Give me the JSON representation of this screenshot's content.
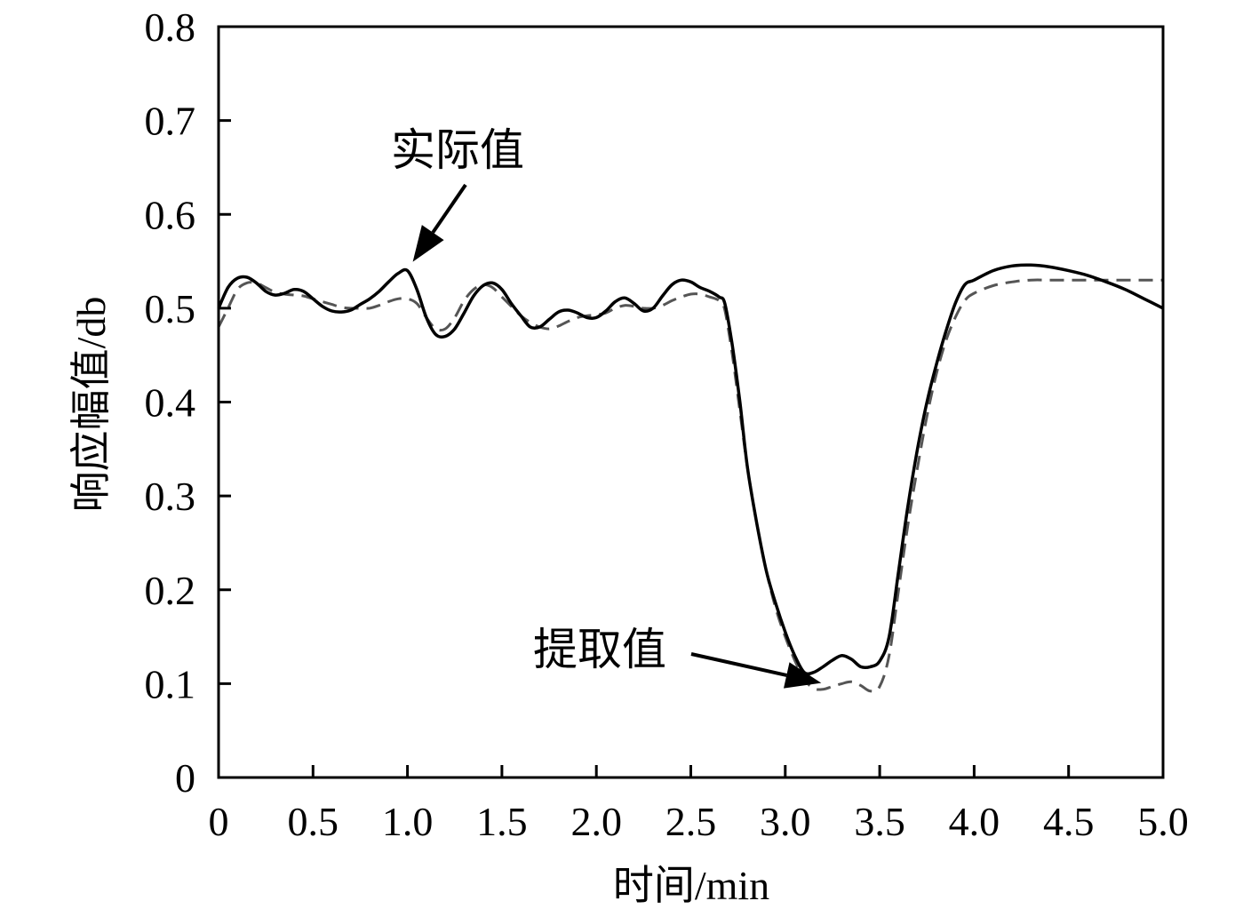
{
  "chart_data": {
    "type": "line",
    "xlabel": "时间/min",
    "ylabel": "响应幅值/db",
    "xlim": [
      0,
      5.0
    ],
    "ylim": [
      0,
      0.8
    ],
    "grid": false,
    "x_ticks": [
      "0",
      "0.5",
      "1.0",
      "1.5",
      "2.0",
      "2.5",
      "3.0",
      "3.5",
      "4.0",
      "4.5",
      "5.0"
    ],
    "y_ticks": [
      "0",
      "0.1",
      "0.2",
      "0.3",
      "0.4",
      "0.5",
      "0.6",
      "0.7",
      "0.8"
    ],
    "series": [
      {
        "name": "实际值",
        "style": "solid",
        "color": "#000000",
        "x": [
          0,
          0.05,
          0.1,
          0.15,
          0.2,
          0.25,
          0.3,
          0.35,
          0.4,
          0.45,
          0.5,
          0.55,
          0.6,
          0.65,
          0.7,
          0.75,
          0.8,
          0.85,
          0.9,
          0.95,
          1.0,
          1.05,
          1.1,
          1.15,
          1.2,
          1.25,
          1.3,
          1.35,
          1.4,
          1.45,
          1.5,
          1.55,
          1.6,
          1.65,
          1.7,
          1.75,
          1.8,
          1.85,
          1.9,
          1.95,
          2.0,
          2.05,
          2.1,
          2.15,
          2.2,
          2.25,
          2.3,
          2.35,
          2.4,
          2.45,
          2.5,
          2.55,
          2.6,
          2.65,
          2.68,
          2.72,
          2.76,
          2.8,
          2.85,
          2.9,
          2.95,
          3.0,
          3.05,
          3.1,
          3.15,
          3.2,
          3.25,
          3.3,
          3.35,
          3.4,
          3.45,
          3.5,
          3.55,
          3.6,
          3.65,
          3.7,
          3.75,
          3.8,
          3.85,
          3.9,
          3.95,
          4.0,
          4.1,
          4.2,
          4.3,
          4.4,
          4.5,
          4.6,
          4.7,
          4.8,
          4.9,
          5.0
        ],
        "y": [
          0.5,
          0.522,
          0.532,
          0.533,
          0.527,
          0.518,
          0.514,
          0.516,
          0.52,
          0.518,
          0.51,
          0.502,
          0.497,
          0.496,
          0.498,
          0.504,
          0.51,
          0.518,
          0.528,
          0.537,
          0.54,
          0.52,
          0.49,
          0.472,
          0.47,
          0.478,
          0.495,
          0.513,
          0.524,
          0.527,
          0.52,
          0.505,
          0.492,
          0.48,
          0.48,
          0.488,
          0.496,
          0.498,
          0.495,
          0.49,
          0.49,
          0.497,
          0.507,
          0.511,
          0.505,
          0.497,
          0.5,
          0.513,
          0.525,
          0.53,
          0.528,
          0.522,
          0.518,
          0.512,
          0.505,
          0.46,
          0.4,
          0.33,
          0.27,
          0.22,
          0.185,
          0.155,
          0.13,
          0.112,
          0.112,
          0.118,
          0.125,
          0.13,
          0.126,
          0.118,
          0.118,
          0.124,
          0.15,
          0.22,
          0.29,
          0.35,
          0.4,
          0.44,
          0.475,
          0.505,
          0.525,
          0.53,
          0.54,
          0.545,
          0.546,
          0.544,
          0.54,
          0.535,
          0.528,
          0.52,
          0.51,
          0.5
        ]
      },
      {
        "name": "提取值",
        "style": "dashed",
        "color": "#555555",
        "x": [
          0,
          0.05,
          0.1,
          0.15,
          0.2,
          0.25,
          0.3,
          0.35,
          0.4,
          0.45,
          0.5,
          0.55,
          0.6,
          0.65,
          0.7,
          0.75,
          0.8,
          0.85,
          0.9,
          0.95,
          1.0,
          1.05,
          1.1,
          1.15,
          1.2,
          1.25,
          1.3,
          1.35,
          1.4,
          1.45,
          1.5,
          1.55,
          1.6,
          1.65,
          1.7,
          1.75,
          1.8,
          1.85,
          1.9,
          1.95,
          2.0,
          2.05,
          2.1,
          2.15,
          2.2,
          2.25,
          2.3,
          2.35,
          2.4,
          2.45,
          2.5,
          2.55,
          2.6,
          2.65,
          2.68,
          2.72,
          2.76,
          2.8,
          2.85,
          2.9,
          2.95,
          3.0,
          3.05,
          3.1,
          3.15,
          3.2,
          3.25,
          3.3,
          3.35,
          3.4,
          3.45,
          3.5,
          3.55,
          3.6,
          3.65,
          3.7,
          3.75,
          3.8,
          3.85,
          3.9,
          3.95,
          4.0,
          4.1,
          4.2,
          4.3,
          4.4,
          4.5,
          4.6,
          4.7,
          4.8,
          4.9,
          5.0
        ],
        "y": [
          0.48,
          0.5,
          0.52,
          0.527,
          0.527,
          0.522,
          0.517,
          0.515,
          0.514,
          0.513,
          0.51,
          0.507,
          0.504,
          0.501,
          0.5,
          0.5,
          0.5,
          0.503,
          0.507,
          0.51,
          0.51,
          0.505,
          0.49,
          0.478,
          0.478,
          0.49,
          0.508,
          0.52,
          0.525,
          0.522,
          0.512,
          0.502,
          0.492,
          0.485,
          0.48,
          0.478,
          0.481,
          0.486,
          0.49,
          0.492,
          0.493,
          0.495,
          0.5,
          0.503,
          0.502,
          0.5,
          0.5,
          0.503,
          0.508,
          0.512,
          0.515,
          0.515,
          0.512,
          0.508,
          0.498,
          0.45,
          0.39,
          0.33,
          0.27,
          0.22,
          0.18,
          0.15,
          0.125,
          0.105,
          0.095,
          0.094,
          0.097,
          0.1,
          0.102,
          0.098,
          0.092,
          0.097,
          0.13,
          0.2,
          0.27,
          0.33,
          0.385,
          0.43,
          0.465,
          0.49,
          0.508,
          0.516,
          0.524,
          0.528,
          0.53,
          0.53,
          0.53,
          0.53,
          0.53,
          0.53,
          0.53,
          0.53
        ]
      }
    ],
    "annotations": [
      {
        "text": "实际值",
        "series": "实际值",
        "target_x": 1.0,
        "target_y": 0.54
      },
      {
        "text": "提取值",
        "series": "提取值",
        "target_x": 3.2,
        "target_y": 0.095
      }
    ]
  }
}
